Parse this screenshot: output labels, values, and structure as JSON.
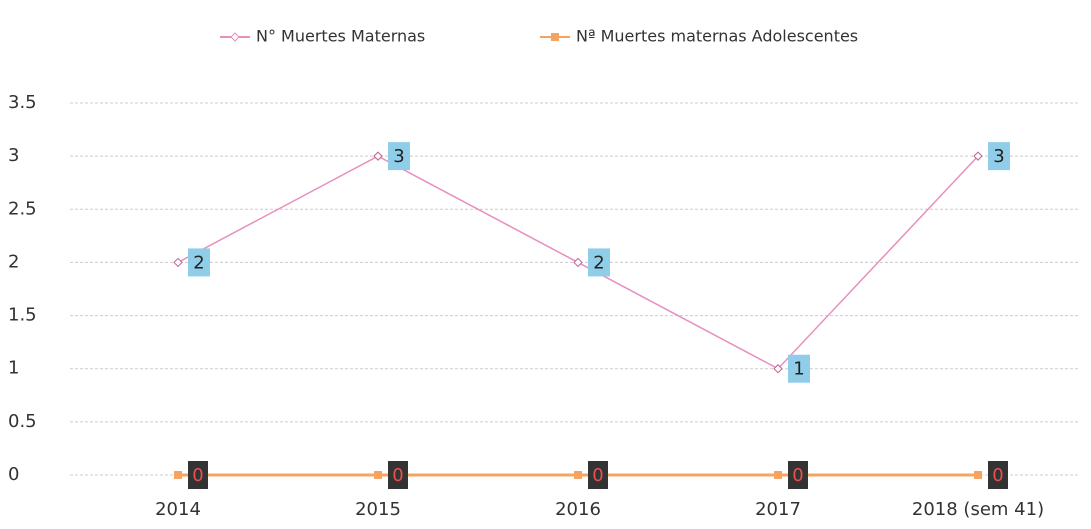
{
  "chart_data": {
    "type": "line",
    "categories": [
      "2014",
      "2015",
      "2016",
      "2017",
      "2018 (sem 41)"
    ],
    "series": [
      {
        "name": "N° Muertes Maternas",
        "color": "#e88fc0",
        "values": [
          2,
          3,
          2,
          1,
          3
        ]
      },
      {
        "name": "Nª Muertes maternas Adolescentes",
        "color": "#f4a460",
        "values": [
          0,
          0,
          0,
          0,
          0
        ]
      }
    ],
    "ylim": [
      0,
      3.5
    ],
    "yticks": [
      0,
      0.5,
      1,
      1.5,
      2,
      2.5,
      3,
      3.5
    ],
    "grid": true,
    "legend": "top"
  }
}
